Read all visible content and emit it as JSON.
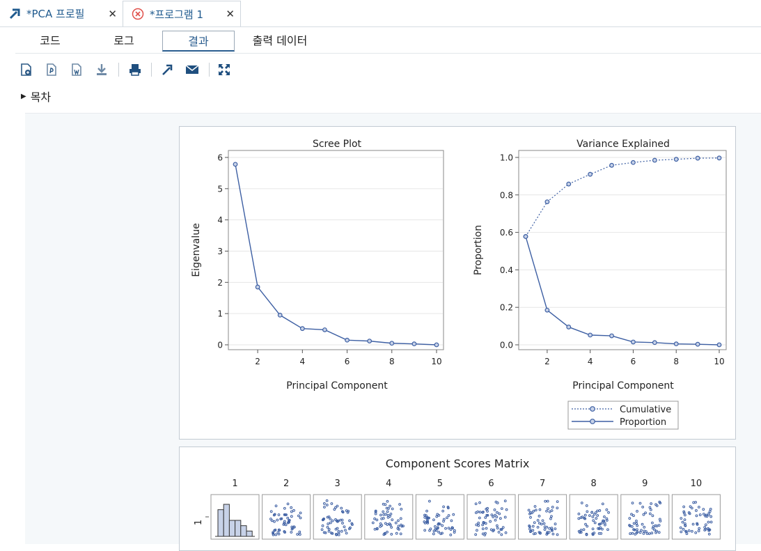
{
  "tabs": [
    {
      "label": "*PCA 프로필",
      "icon": "process-flow-icon",
      "close": "✕"
    },
    {
      "label": "*프로그램 1",
      "icon": "error-icon",
      "close": "✕"
    }
  ],
  "subtabs": [
    {
      "label": "코드",
      "active": false
    },
    {
      "label": "로그",
      "active": false
    },
    {
      "label": "결과",
      "active": true
    },
    {
      "label": "출력 데이터",
      "active": false
    }
  ],
  "toolbar_icons": [
    "html-download-icon",
    "pdf-download-icon",
    "word-download-icon",
    "download-icon",
    "print-icon",
    "open-new-window-icon",
    "email-icon",
    "expand-icon"
  ],
  "toc": {
    "label": "목차"
  },
  "colors": {
    "series": "#3d5fa3",
    "marker_fill": "#c7d2e8",
    "grid": "#e6e6e6",
    "frame": "#8a8a8a"
  },
  "chart_data": [
    {
      "type": "line",
      "title": "Scree Plot",
      "xlabel": "Principal Component",
      "ylabel": "Eigenvalue",
      "x": [
        1,
        2,
        3,
        4,
        5,
        6,
        7,
        8,
        9,
        10
      ],
      "xticks": [
        "2",
        "4",
        "6",
        "8",
        "10"
      ],
      "yticks": [
        "0",
        "1",
        "2",
        "3",
        "4",
        "5",
        "6"
      ],
      "xlim": [
        1,
        10
      ],
      "ylim": [
        0,
        6
      ],
      "grid": true,
      "series": [
        {
          "values": [
            5.78,
            1.85,
            0.95,
            0.52,
            0.48,
            0.15,
            0.12,
            0.05,
            0.03,
            0.0
          ]
        }
      ]
    },
    {
      "type": "line",
      "title": "Variance Explained",
      "xlabel": "Principal Component",
      "ylabel": "Proportion",
      "x": [
        1,
        2,
        3,
        4,
        5,
        6,
        7,
        8,
        9,
        10
      ],
      "xticks": [
        "2",
        "4",
        "6",
        "8",
        "10"
      ],
      "yticks": [
        "0.0",
        "0.2",
        "0.4",
        "0.6",
        "0.8",
        "1.0"
      ],
      "xlim": [
        1,
        10
      ],
      "ylim": [
        0,
        1
      ],
      "grid": true,
      "legend": "bottom",
      "series": [
        {
          "name": "Cumulative",
          "style": "dotted",
          "values": [
            0.578,
            0.763,
            0.858,
            0.91,
            0.958,
            0.973,
            0.985,
            0.99,
            0.996,
            0.997
          ]
        },
        {
          "name": "Proportion",
          "style": "solid",
          "values": [
            0.578,
            0.185,
            0.095,
            0.052,
            0.048,
            0.015,
            0.012,
            0.005,
            0.003,
            0.0
          ]
        }
      ]
    },
    {
      "type": "scatter",
      "title": "Component Scores Matrix",
      "column_labels": [
        "1",
        "2",
        "3",
        "4",
        "5",
        "6",
        "7",
        "8",
        "9",
        "10"
      ],
      "row_labels": [
        "1"
      ],
      "histogram": {
        "values": [
          5,
          6,
          3,
          3,
          2,
          1
        ]
      }
    }
  ]
}
